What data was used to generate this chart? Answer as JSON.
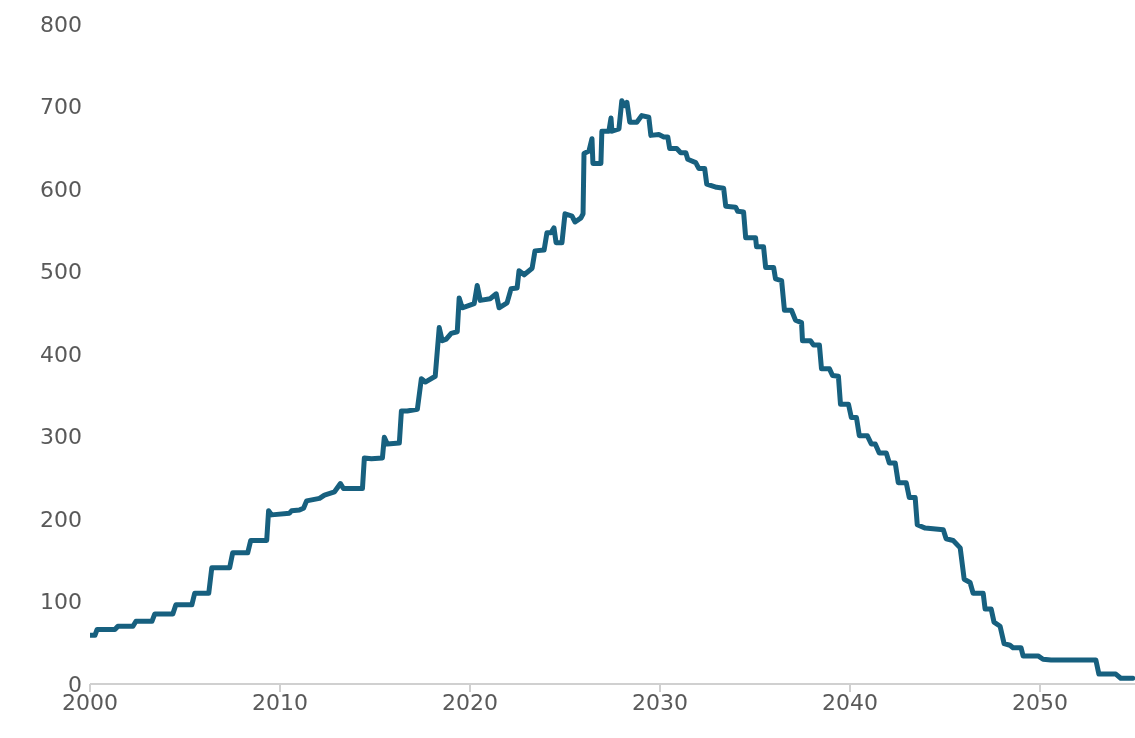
{
  "chart_data": {
    "type": "line",
    "xlim": [
      2000,
      2055
    ],
    "xticks": [
      2000,
      2010,
      2020,
      2030,
      2040,
      2050
    ],
    "ylim": [
      0,
      800
    ],
    "yticks": [
      0,
      100,
      200,
      300,
      400,
      500,
      600,
      700,
      800
    ],
    "marker": "none",
    "line_style": "solid",
    "x": [
      2000,
      2000.26,
      2000.37,
      2001.31,
      2001.47,
      2002.26,
      2002.42,
      2003.26,
      2003.41,
      2004.36,
      2004.52,
      2005.36,
      2005.51,
      2006.25,
      2006.41,
      2007.35,
      2007.51,
      2008.3,
      2008.46,
      2009.3,
      2009.4,
      2009.56,
      2010.5,
      2010.61,
      2011.03,
      2011.24,
      2011.4,
      2012.08,
      2012.34,
      2012.87,
      2013.18,
      2013.34,
      2014.34,
      2014.44,
      2014.81,
      2015.39,
      2015.49,
      2015.65,
      2016.28,
      2016.39,
      2016.7,
      2017.23,
      2017.44,
      2017.65,
      2018.17,
      2018.38,
      2018.54,
      2018.75,
      2019.01,
      2019.33,
      2019.43,
      2019.59,
      2020.22,
      2020.38,
      2020.54,
      2021.06,
      2021.38,
      2021.53,
      2021.95,
      2022.16,
      2022.48,
      2022.58,
      2022.85,
      2023.27,
      2023.42,
      2023.9,
      2024.05,
      2024.26,
      2024.42,
      2024.53,
      2024.84,
      2025,
      2025.37,
      2025.53,
      2025.84,
      2025.95,
      2026,
      2026.26,
      2026.42,
      2026.47,
      2026.89,
      2026.94,
      2027.31,
      2027.42,
      2027.47,
      2027.84,
      2027.99,
      2028.15,
      2028.26,
      2028.41,
      2028.78,
      2029.04,
      2029.41,
      2029.52,
      2029.94,
      2030.2,
      2030.41,
      2030.51,
      2030.88,
      2031.09,
      2031.36,
      2031.46,
      2031.88,
      2032.04,
      2032.35,
      2032.46,
      2032.98,
      2033.35,
      2033.46,
      2033.98,
      2034.09,
      2034.4,
      2034.51,
      2035.03,
      2035.08,
      2035.45,
      2035.56,
      2035.98,
      2036.08,
      2036.4,
      2036.55,
      2036.92,
      2037.13,
      2037.45,
      2037.5,
      2037.92,
      2038.08,
      2038.39,
      2038.5,
      2038.92,
      2039.08,
      2039.39,
      2039.5,
      2039.92,
      2040.07,
      2040.34,
      2040.49,
      2040.91,
      2041.12,
      2041.33,
      2041.54,
      2041.91,
      2042.07,
      2042.38,
      2042.54,
      2042.96,
      2043.12,
      2043.43,
      2043.54,
      2043.96,
      2044.91,
      2045.06,
      2045.43,
      2045.8,
      2046.01,
      2046.32,
      2046.48,
      2047.01,
      2047.11,
      2047.43,
      2047.58,
      2047.9,
      2048.11,
      2048.42,
      2048.58,
      2049,
      2049.11,
      2049.9,
      2050.16,
      2050.58,
      2052.94,
      2053.1,
      2053.99,
      2054.25,
      2054.88
    ],
    "series": [
      {
        "color": "#17607f",
        "values": [
          59,
          59,
          66,
          66,
          70,
          70,
          76,
          76,
          85,
          85,
          96,
          96,
          110,
          110,
          141,
          141,
          159,
          159,
          174,
          174,
          210,
          205,
          207,
          210,
          211,
          213,
          222,
          225,
          229,
          233,
          243,
          237,
          237,
          274,
          273,
          274,
          299,
          291,
          292,
          331,
          331,
          333,
          370,
          366,
          373,
          432,
          416,
          418,
          425,
          427,
          468,
          456,
          461,
          483,
          465,
          467,
          473,
          456,
          462,
          479,
          480,
          501,
          496,
          504,
          525,
          526,
          547,
          547,
          553,
          535,
          535,
          570,
          567,
          560,
          565,
          570,
          643,
          646,
          661,
          631,
          631,
          670,
          670,
          686,
          670,
          673,
          707,
          701,
          705,
          681,
          681,
          689,
          687,
          665,
          666,
          663,
          663,
          649,
          649,
          644,
          644,
          636,
          632,
          625,
          625,
          606,
          602,
          601,
          579,
          578,
          573,
          572,
          541,
          541,
          530,
          530,
          505,
          505,
          491,
          489,
          453,
          453,
          441,
          438,
          416,
          416,
          411,
          411,
          382,
          382,
          374,
          373,
          339,
          339,
          323,
          323,
          301,
          301,
          291,
          291,
          280,
          280,
          268,
          268,
          244,
          244,
          226,
          226,
          193,
          189,
          187,
          176,
          174,
          165,
          127,
          123,
          110,
          110,
          91,
          91,
          75,
          70,
          49,
          47,
          44,
          44,
          34,
          34,
          30,
          29,
          29,
          12,
          12,
          7,
          7
        ]
      }
    ]
  }
}
